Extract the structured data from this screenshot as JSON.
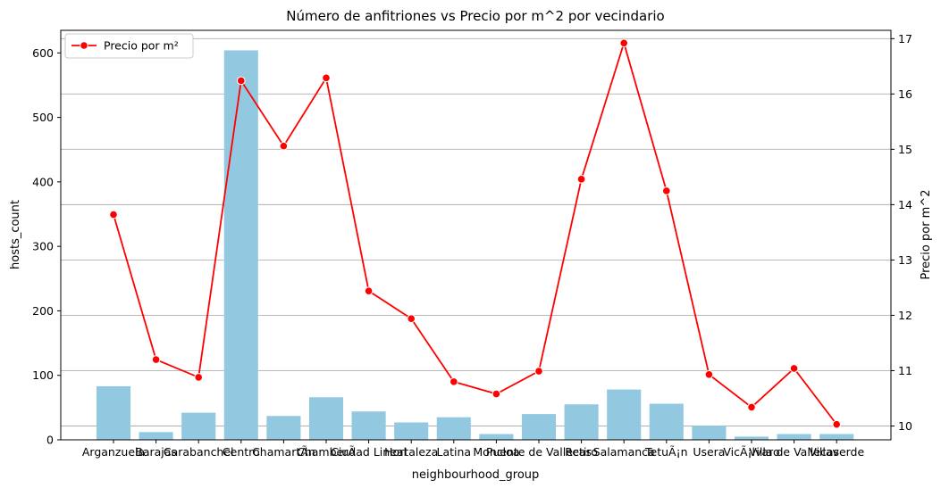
{
  "chart_data": {
    "type": "bar+line",
    "title": "Número de anfitriones vs Precio por m^2 por vecindario",
    "xlabel": "neighbourhood_group",
    "ylabel_left": "hosts_count",
    "ylabel_right": "Precio por m^2",
    "categories": [
      "Arganzuela",
      "Barajas",
      "Carabanchel",
      "Centro",
      "ChamartÃ­n",
      "ChamberÃ­",
      "Ciudad Lineal",
      "Hortaleza",
      "Latina",
      "Moncloa",
      "Puente de Vallecas",
      "Retiro",
      "Salamanca",
      "TetuÃ¡n",
      "Usera",
      "VicÃ¡lvaro",
      "Villa de Vallecas",
      "Villaverde"
    ],
    "series": [
      {
        "name": "hosts_count",
        "type": "bar",
        "axis": "left",
        "color": "#92c9e0",
        "values": [
          83,
          12,
          42,
          604,
          37,
          66,
          44,
          27,
          35,
          9,
          40,
          55,
          78,
          56,
          22,
          5,
          9,
          9
        ]
      },
      {
        "name": "Precio por m²",
        "type": "line",
        "axis": "right",
        "color": "#ff0000",
        "values": [
          13.82,
          11.2,
          10.88,
          16.24,
          15.06,
          16.29,
          12.44,
          11.94,
          10.8,
          10.58,
          10.99,
          14.46,
          16.92,
          14.25,
          10.93,
          10.34,
          11.04,
          10.03
        ]
      }
    ],
    "ylim_left": [
      0,
      635
    ],
    "yticks_left": [
      0,
      100,
      200,
      300,
      400,
      500,
      600
    ],
    "ylim_right": [
      9.75,
      17.15
    ],
    "yticks_right": [
      10,
      11,
      12,
      13,
      14,
      15,
      16,
      17
    ],
    "grid": "horizontal on right axis",
    "legend": {
      "placement": "top-left",
      "entries": [
        "Precio por m²"
      ]
    }
  }
}
